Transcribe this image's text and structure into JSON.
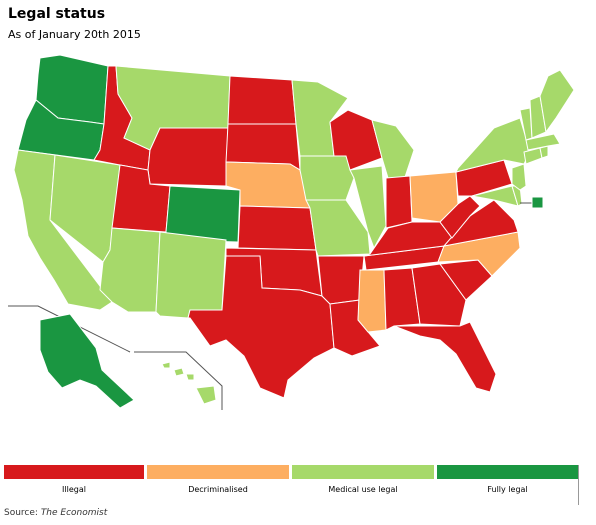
{
  "header": {
    "title": "Legal status",
    "subtitle": "As of January 20th 2015"
  },
  "colors": {
    "illegal": "#d7191c",
    "decriminalised": "#fdae61",
    "medical": "#a6d96a",
    "fully_legal": "#1a9641",
    "border": "#ffffff",
    "inset_line": "#555555"
  },
  "legend": {
    "items": [
      {
        "key": "illegal",
        "label": "Illegal"
      },
      {
        "key": "decriminalised",
        "label": "Decriminalised"
      },
      {
        "key": "medical",
        "label": "Medical use legal"
      },
      {
        "key": "fully_legal",
        "label": "Fully legal"
      }
    ]
  },
  "states": {
    "WA": "fully_legal",
    "OR": "fully_legal",
    "CO": "fully_legal",
    "AK": "fully_legal",
    "DC": "fully_legal",
    "CA": "medical",
    "NV": "medical",
    "AZ": "medical",
    "NM": "medical",
    "MT": "medical",
    "MN": "medical",
    "IA": "medical",
    "IL": "medical",
    "MO": "medical",
    "MI": "medical",
    "ME": "medical",
    "NY": "medical",
    "VT": "medical",
    "NH": "medical",
    "MA": "medical",
    "CT": "medical",
    "RI": "medical",
    "NJ": "medical",
    "DE": "medical",
    "MD": "medical",
    "HI": "medical",
    "NE": "decriminalised",
    "OH": "decriminalised",
    "MS": "decriminalised",
    "NC": "decriminalised",
    "ID": "illegal",
    "UT": "illegal",
    "WY": "illegal",
    "ND": "illegal",
    "SD": "illegal",
    "KS": "illegal",
    "OK": "illegal",
    "TX": "illegal",
    "AR": "illegal",
    "LA": "illegal",
    "WI": "illegal",
    "IN": "illegal",
    "KY": "illegal",
    "TN": "illegal",
    "AL": "illegal",
    "GA": "illegal",
    "FL": "illegal",
    "SC": "illegal",
    "VA": "illegal",
    "WV": "illegal",
    "PA": "illegal"
  },
  "source": {
    "prefix": "Source: ",
    "name": "The Economist"
  }
}
